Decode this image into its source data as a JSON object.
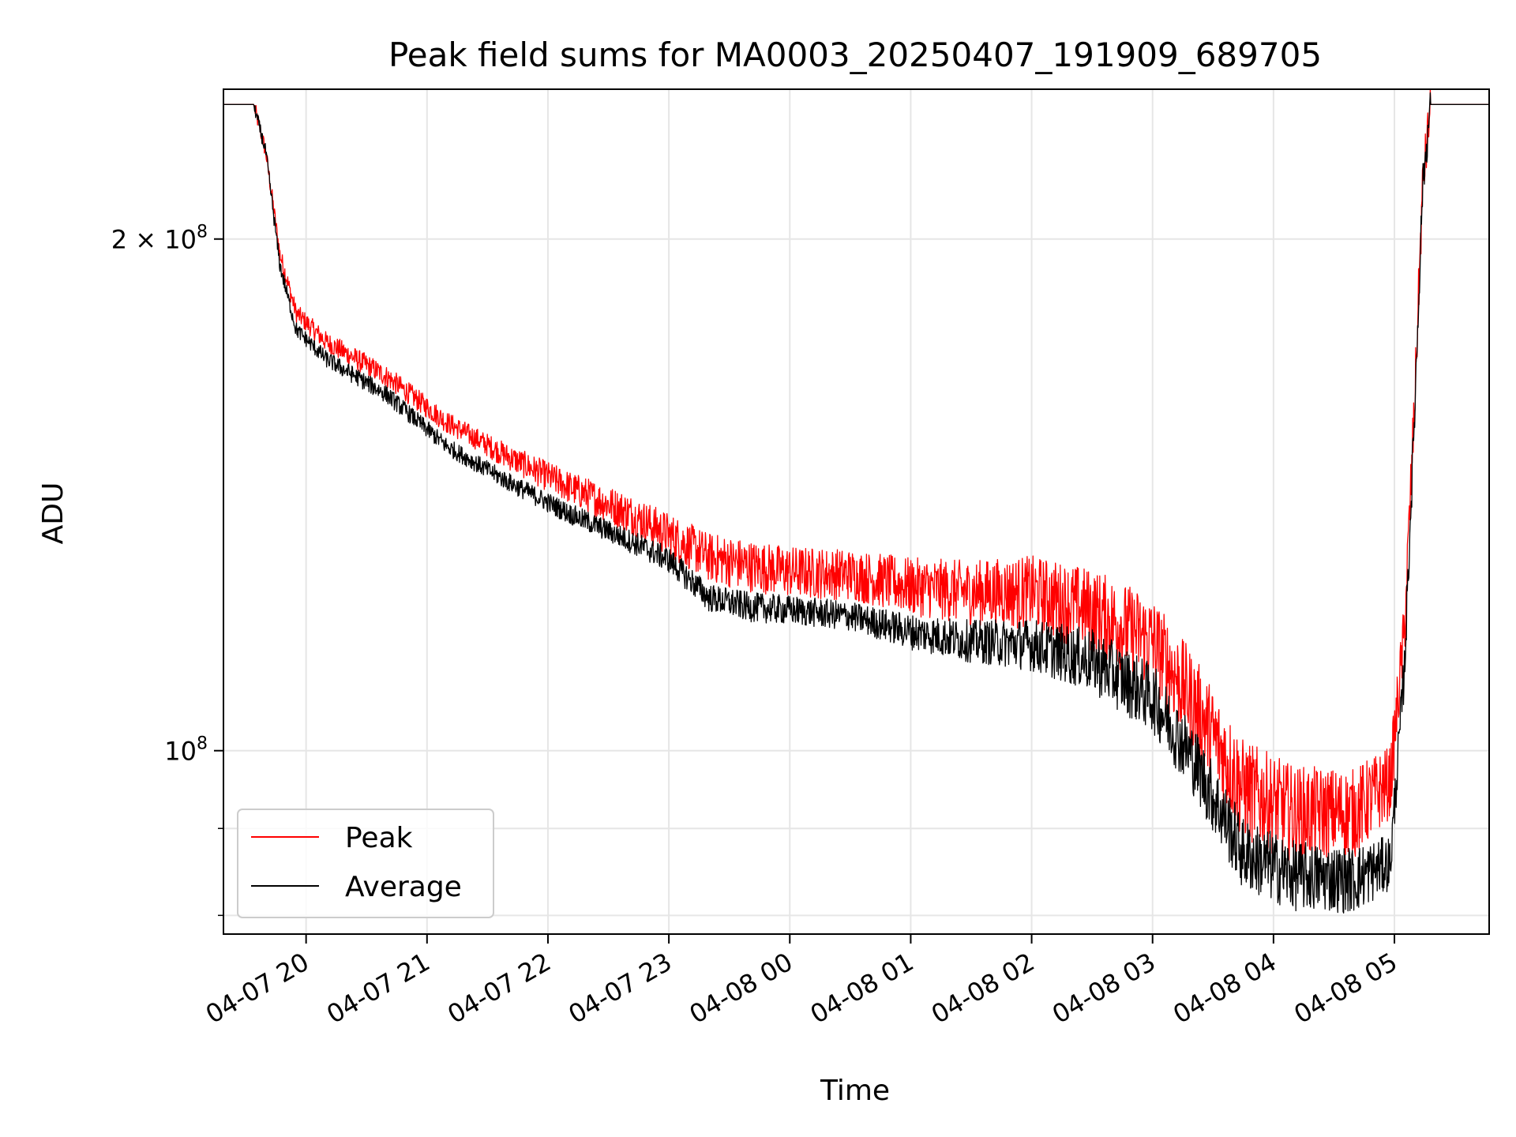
{
  "chart_data": {
    "type": "line",
    "title": "Peak field sums for MA0003_20250407_191909_689705",
    "xlabel": "Time",
    "ylabel": "ADU",
    "yscale": "log",
    "ylim": [
      78000000,
      245000000
    ],
    "xlim": [
      "2025-04-07 19:19",
      "2025-04-08 05:47"
    ],
    "x_ticks": [
      {
        "t": "2025-04-07 20:00",
        "label": "04-07 20"
      },
      {
        "t": "2025-04-07 21:00",
        "label": "04-07 21"
      },
      {
        "t": "2025-04-07 22:00",
        "label": "04-07 22"
      },
      {
        "t": "2025-04-07 23:00",
        "label": "04-07 23"
      },
      {
        "t": "2025-04-08 00:00",
        "label": "04-08 00"
      },
      {
        "t": "2025-04-08 01:00",
        "label": "04-08 01"
      },
      {
        "t": "2025-04-08 02:00",
        "label": "04-08 02"
      },
      {
        "t": "2025-04-08 03:00",
        "label": "04-08 03"
      },
      {
        "t": "2025-04-08 04:00",
        "label": "04-08 04"
      },
      {
        "t": "2025-04-08 05:00",
        "label": "04-08 05"
      }
    ],
    "y_major_ticks": [
      {
        "v": 100000000,
        "base": "10",
        "exp": "8",
        "mult": ""
      },
      {
        "v": 200000000,
        "base": "10",
        "exp": "8",
        "mult": "2 × "
      }
    ],
    "y_minor_ticks": [
      80000000,
      90000000
    ],
    "grid": true,
    "legend_position": "lower-left",
    "series": [
      {
        "name": "Peak",
        "color": "#ff0000",
        "noise": [
          0.01,
          0.015,
          0.015,
          0.025,
          0.035,
          0.035,
          0.045,
          0.06,
          0.07,
          0.06,
          0.01
        ],
        "points": [
          [
            "2025-04-07 19:19",
            240000000
          ],
          [
            "2025-04-07 19:34",
            240000000
          ],
          [
            "2025-04-07 19:40",
            225000000
          ],
          [
            "2025-04-07 19:47",
            196000000
          ],
          [
            "2025-04-07 19:55",
            181000000
          ],
          [
            "2025-04-07 20:10",
            174000000
          ],
          [
            "2025-04-07 20:40",
            166000000
          ],
          [
            "2025-04-07 21:10",
            156000000
          ],
          [
            "2025-04-07 21:40",
            149000000
          ],
          [
            "2025-04-07 22:10",
            143000000
          ],
          [
            "2025-04-07 22:40",
            138000000
          ],
          [
            "2025-04-07 23:00",
            134000000
          ],
          [
            "2025-04-07 23:20",
            130000000
          ],
          [
            "2025-04-07 23:40",
            128500000
          ],
          [
            "2025-04-08 00:00",
            127500000
          ],
          [
            "2025-04-08 00:30",
            127000000
          ],
          [
            "2025-04-08 01:00",
            125000000
          ],
          [
            "2025-04-08 01:30",
            124000000
          ],
          [
            "2025-04-08 02:00",
            124000000
          ],
          [
            "2025-04-08 02:30",
            121000000
          ],
          [
            "2025-04-08 03:00",
            116000000
          ],
          [
            "2025-04-08 03:20",
            107000000
          ],
          [
            "2025-04-08 03:45",
            95000000
          ],
          [
            "2025-04-08 04:10",
            92000000
          ],
          [
            "2025-04-08 04:40",
            92000000
          ],
          [
            "2025-04-08 04:58",
            96000000
          ],
          [
            "2025-04-08 05:05",
            118000000
          ],
          [
            "2025-04-08 05:10",
            160000000
          ],
          [
            "2025-04-08 05:14",
            215000000
          ],
          [
            "2025-04-08 05:18",
            240000000
          ],
          [
            "2025-04-08 05:47",
            240000000
          ]
        ]
      },
      {
        "name": "Average",
        "color": "#000000",
        "noise": [
          0.008,
          0.012,
          0.012,
          0.015,
          0.02,
          0.02,
          0.03,
          0.045,
          0.05,
          0.045,
          0.008
        ],
        "points": [
          [
            "2025-04-07 19:19",
            240000000
          ],
          [
            "2025-04-07 19:34",
            240000000
          ],
          [
            "2025-04-07 19:40",
            225000000
          ],
          [
            "2025-04-07 19:47",
            193000000
          ],
          [
            "2025-04-07 19:55",
            177000000
          ],
          [
            "2025-04-07 20:10",
            170000000
          ],
          [
            "2025-04-07 20:40",
            162000000
          ],
          [
            "2025-04-07 21:10",
            151000000
          ],
          [
            "2025-04-07 21:40",
            144000000
          ],
          [
            "2025-04-07 22:10",
            138000000
          ],
          [
            "2025-04-07 22:40",
            133000000
          ],
          [
            "2025-04-07 23:00",
            129500000
          ],
          [
            "2025-04-07 23:20",
            123000000
          ],
          [
            "2025-04-07 23:40",
            121500000
          ],
          [
            "2025-04-08 00:00",
            121000000
          ],
          [
            "2025-04-08 00:30",
            120000000
          ],
          [
            "2025-04-08 01:00",
            117500000
          ],
          [
            "2025-04-08 01:30",
            116000000
          ],
          [
            "2025-04-08 02:00",
            115500000
          ],
          [
            "2025-04-08 02:30",
            113000000
          ],
          [
            "2025-04-08 03:00",
            107500000
          ],
          [
            "2025-04-08 03:20",
            99000000
          ],
          [
            "2025-04-08 03:45",
            87000000
          ],
          [
            "2025-04-08 04:10",
            84500000
          ],
          [
            "2025-04-08 04:40",
            84000000
          ],
          [
            "2025-04-08 04:58",
            86000000
          ],
          [
            "2025-04-08 05:05",
            112000000
          ],
          [
            "2025-04-08 05:10",
            158000000
          ],
          [
            "2025-04-08 05:14",
            215000000
          ],
          [
            "2025-04-08 05:18",
            240000000
          ],
          [
            "2025-04-08 05:47",
            240000000
          ]
        ]
      }
    ]
  }
}
